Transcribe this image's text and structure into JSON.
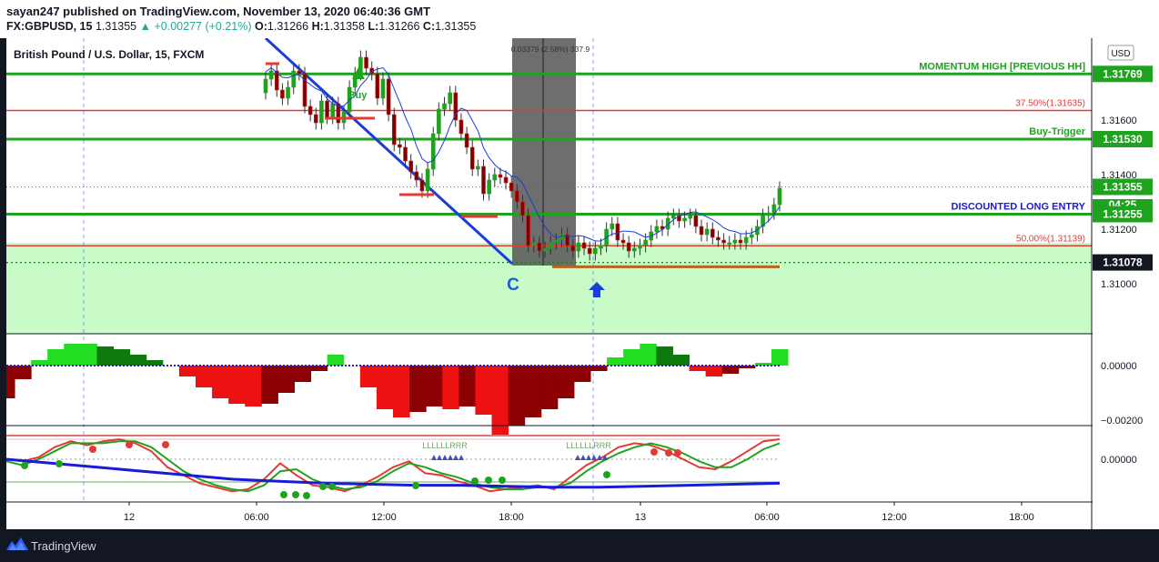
{
  "header": {
    "publisher": "sayan247 published on TradingView.com, November 13, 2020 06:40:36 GMT",
    "symbol": "FX:GBPUSD, 15",
    "last": "1.31355",
    "change": "+0.00277 (+0.21%)",
    "o_label": "O:",
    "o": "1.31266",
    "h_label": "H:",
    "h": "1.31358",
    "l_label": "L:",
    "l": "1.31266",
    "c_label": "C:",
    "c": "1.31355"
  },
  "footer": {
    "brand": "TradingView"
  },
  "chart_data": [
    {
      "type": "candlestick",
      "title": "British Pound / U.S. Dollar, 15, FXCM",
      "currency": "USD",
      "y_range": [
        1.3098,
        1.3183
      ],
      "y_ticks": [
        1.31,
        1.312,
        1.314,
        1.316
      ],
      "x_ticks": [
        "12",
        "06:00",
        "12:00",
        "18:00",
        "13",
        "06:00",
        "12:00",
        "18:00"
      ],
      "price_labels": [
        {
          "text": "1.31769",
          "value": 1.31769,
          "color": "#1fa31f"
        },
        {
          "text": "1.31530",
          "value": 1.3153,
          "color": "#1fa31f"
        },
        {
          "text": "1.31355",
          "value": 1.31355,
          "color": "#1fa31f"
        },
        {
          "text": "04:25",
          "value": 1.3129,
          "color": "#1fa31f"
        },
        {
          "text": "1.31255",
          "value": 1.31255,
          "color": "#1fa31f"
        },
        {
          "text": "1.31078",
          "value": 1.31078,
          "color": "#131722"
        }
      ],
      "horizontal_lines": [
        {
          "value": 1.31769,
          "label": "MOMENTUM HIGH [PREVIOUS HH]",
          "color": "#1fa31f"
        },
        {
          "value": 1.31635,
          "label": "37.50%(1.31635)",
          "color": "#e53935"
        },
        {
          "value": 1.3153,
          "label": "Buy-Trigger",
          "color": "#1fa31f"
        },
        {
          "value": 1.31255,
          "label": "DISCOUNTED LONG ENTRY",
          "color": "#1fa31f",
          "label_color": "#1a1adb"
        },
        {
          "value": 1.31139,
          "label": "50.00%(1.31139)",
          "color": "#e53935"
        },
        {
          "value": 1.31078,
          "label": "",
          "color": "#1e7d1e"
        }
      ],
      "annotations": {
        "buy": "Buy",
        "wave": "C",
        "measure": "0.03379 (2.58%) 337.9"
      },
      "zone": {
        "from": 1.3098,
        "to": 1.3115,
        "color": "#c8fbc8"
      },
      "closes": [
        1.3175,
        1.3178,
        1.3171,
        1.3168,
        1.3172,
        1.3178,
        1.3177,
        1.3165,
        1.3162,
        1.3159,
        1.3167,
        1.3161,
        1.3166,
        1.3159,
        1.3163,
        1.3172,
        1.3177,
        1.3183,
        1.3179,
        1.3177,
        1.3168,
        1.3175,
        1.3162,
        1.3151,
        1.315,
        1.3145,
        1.3141,
        1.3138,
        1.3134,
        1.3142,
        1.3155,
        1.3164,
        1.3166,
        1.317,
        1.316,
        1.3155,
        1.315,
        1.3142,
        1.3143,
        1.3133,
        1.3138,
        1.314,
        1.3139,
        1.3137,
        1.3134,
        1.313,
        1.3125,
        1.3114,
        1.3115,
        1.3112,
        1.3113,
        1.3115,
        1.3116,
        1.3118,
        1.3114,
        1.3112,
        1.3115,
        1.3113,
        1.3111,
        1.3113,
        1.3114,
        1.312,
        1.3122,
        1.3116,
        1.3115,
        1.3112,
        1.3113,
        1.3114,
        1.3116,
        1.3119,
        1.3121,
        1.312,
        1.3124,
        1.3125,
        1.3123,
        1.3124,
        1.3125,
        1.3121,
        1.3118,
        1.312,
        1.3117,
        1.3116,
        1.3115,
        1.3115,
        1.3116,
        1.3115,
        1.3117,
        1.3118,
        1.3121,
        1.3125,
        1.3126,
        1.3129,
        1.3135
      ]
    },
    {
      "type": "area",
      "name": "histogram oscillator",
      "y_ticks": [
        0.0,
        -0.002
      ],
      "y_tick_labels": [
        "0.00000",
        "−0.00200"
      ],
      "values": [
        -0.0012,
        -0.0005,
        0.0002,
        0.0006,
        0.0008,
        0.0008,
        0.0007,
        0.0006,
        0.0004,
        0.0002,
        0.0,
        -0.0004,
        -0.0008,
        -0.0012,
        -0.0014,
        -0.0015,
        -0.0014,
        -0.001,
        -0.0006,
        -0.0002,
        0.0004,
        0.0,
        -0.0008,
        -0.0016,
        -0.0019,
        -0.0017,
        -0.0015,
        -0.0016,
        -0.0015,
        -0.0018,
        -0.0026,
        -0.0022,
        -0.0019,
        -0.0016,
        -0.0012,
        -0.0006,
        -0.0002,
        0.0003,
        0.0006,
        0.0008,
        0.0007,
        0.0004,
        -0.0002,
        -0.0004,
        -0.0003,
        -0.0001,
        0.0001,
        0.0006
      ]
    },
    {
      "type": "line",
      "name": "oscillator",
      "y_ticks": [
        0.0
      ],
      "y_tick_labels": [
        "0.00000"
      ],
      "marker_labels": [
        "LLLLLLRRR",
        "LLLLLLRRR"
      ],
      "series": [
        {
          "color": "#e53935",
          "values": [
            0.0,
            -0.1,
            0.1,
            0.6,
            0.9,
            0.7,
            0.9,
            1.0,
            0.8,
            0.4,
            -0.4,
            -0.8,
            -1.2,
            -1.4,
            -1.6,
            -1.5,
            -1.0,
            -0.2,
            -0.8,
            -1.3,
            -1.4,
            -1.6,
            -1.3,
            -0.9,
            -0.4,
            -0.1,
            -0.7,
            -0.8,
            -1.1,
            -1.3,
            -1.6,
            -1.5,
            -1.4,
            -1.3,
            -1.5,
            -0.9,
            -0.3,
            0.1,
            0.6,
            0.8,
            0.7,
            0.4,
            0.0,
            -0.4,
            -0.5,
            -0.1,
            0.4,
            0.9,
            1.0
          ]
        },
        {
          "color": "#1fa31f",
          "values": [
            -0.1,
            -0.3,
            0.0,
            0.4,
            0.8,
            0.8,
            0.8,
            0.9,
            0.9,
            0.6,
            0.0,
            -0.6,
            -1.0,
            -1.3,
            -1.5,
            -1.6,
            -1.3,
            -0.6,
            -0.5,
            -1.0,
            -1.3,
            -1.5,
            -1.4,
            -1.1,
            -0.6,
            -0.2,
            -0.4,
            -0.7,
            -0.9,
            -1.2,
            -1.4,
            -1.5,
            -1.5,
            -1.4,
            -1.4,
            -1.2,
            -0.6,
            -0.1,
            0.3,
            0.6,
            0.8,
            0.6,
            0.3,
            -0.1,
            -0.4,
            -0.4,
            0.0,
            0.5,
            0.8
          ]
        },
        {
          "color": "#1a1adb",
          "values": [
            0.0,
            -0.2,
            -0.4,
            -0.6,
            -0.8,
            -1.0,
            -1.1,
            -1.2,
            -1.25,
            -1.3,
            -1.3,
            -1.35,
            -1.4,
            -1.4,
            -1.35,
            -1.3,
            -1.25,
            -1.2
          ]
        }
      ]
    }
  ]
}
